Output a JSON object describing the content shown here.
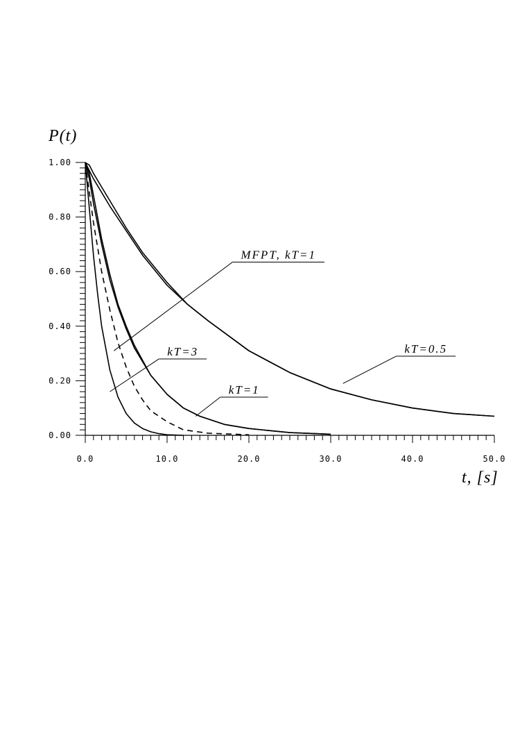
{
  "chart_data": {
    "type": "line",
    "xlabel": "t, [s]",
    "ylabel": "P(t)",
    "xlim": [
      0,
      50
    ],
    "ylim": [
      0,
      1
    ],
    "x_ticks": [
      "0.0",
      "10.0",
      "20.0",
      "30.0",
      "40.0",
      "50.0"
    ],
    "y_ticks": [
      "0.00",
      "0.20",
      "0.40",
      "0.60",
      "0.80",
      "1.00"
    ],
    "grid": false,
    "legend": "none",
    "series": [
      {
        "name": "kT=0.5",
        "style": "solid",
        "x": [
          0,
          0.5,
          1,
          2,
          3,
          5,
          7,
          10,
          12.5,
          15,
          20,
          25,
          30,
          35,
          40,
          45,
          50
        ],
        "y": [
          1.0,
          0.99,
          0.96,
          0.91,
          0.86,
          0.76,
          0.67,
          0.56,
          0.48,
          0.42,
          0.31,
          0.23,
          0.17,
          0.13,
          0.1,
          0.08,
          0.07
        ]
      },
      {
        "name": "",
        "style": "solid",
        "x": [
          0,
          1,
          2,
          3,
          5,
          7,
          10,
          12.5,
          15,
          20,
          25,
          30,
          35,
          40,
          45,
          50
        ],
        "y": [
          1.0,
          0.94,
          0.89,
          0.84,
          0.75,
          0.66,
          0.55,
          0.48,
          0.42,
          0.31,
          0.23,
          0.17,
          0.13,
          0.1,
          0.08,
          0.07
        ]
      },
      {
        "name": "kT=1",
        "style": "solid",
        "x": [
          0,
          0.5,
          1,
          2,
          3,
          4,
          5,
          6,
          8,
          10,
          12,
          14,
          17,
          20,
          25,
          30
        ],
        "y": [
          1.0,
          0.94,
          0.85,
          0.7,
          0.57,
          0.47,
          0.39,
          0.32,
          0.22,
          0.15,
          0.1,
          0.07,
          0.04,
          0.025,
          0.01,
          0.004
        ]
      },
      {
        "name": "",
        "style": "solid",
        "x": [
          0,
          0.5,
          1,
          2,
          3,
          4,
          5,
          6,
          8,
          10,
          12,
          14,
          17,
          20,
          25,
          30
        ],
        "y": [
          1.0,
          0.96,
          0.88,
          0.72,
          0.59,
          0.48,
          0.4,
          0.33,
          0.22,
          0.15,
          0.1,
          0.07,
          0.04,
          0.025,
          0.01,
          0.004
        ]
      },
      {
        "name": "MFPT, kT=1",
        "style": "dashed",
        "x": [
          0,
          0.5,
          1,
          1.5,
          2,
          3,
          4,
          5,
          6,
          7,
          8,
          10,
          12,
          15,
          20
        ],
        "y": [
          1.0,
          0.89,
          0.78,
          0.69,
          0.6,
          0.46,
          0.34,
          0.25,
          0.18,
          0.13,
          0.09,
          0.05,
          0.02,
          0.008,
          0.002
        ]
      },
      {
        "name": "kT=3",
        "style": "solid",
        "x": [
          0,
          0.3,
          0.7,
          1,
          1.5,
          2,
          3,
          4,
          5,
          6,
          7,
          8,
          9,
          10,
          12
        ],
        "y": [
          1.0,
          0.9,
          0.76,
          0.66,
          0.52,
          0.4,
          0.24,
          0.14,
          0.08,
          0.045,
          0.025,
          0.013,
          0.006,
          0.002,
          0.0
        ]
      }
    ],
    "annotations": [
      {
        "text": "MFPT, kT=1",
        "point": [
          3.5,
          0.31
        ],
        "label_anchor": [
          18.0,
          0.635
        ]
      },
      {
        "text": "kT=3",
        "point": [
          3.0,
          0.16
        ],
        "label_anchor": [
          9.0,
          0.28
        ]
      },
      {
        "text": "kT=1",
        "point": [
          13.5,
          0.07
        ],
        "label_anchor": [
          16.5,
          0.14
        ]
      },
      {
        "text": "kT=0.5",
        "point": [
          31.5,
          0.19
        ],
        "label_anchor": [
          38.0,
          0.29
        ]
      }
    ]
  }
}
